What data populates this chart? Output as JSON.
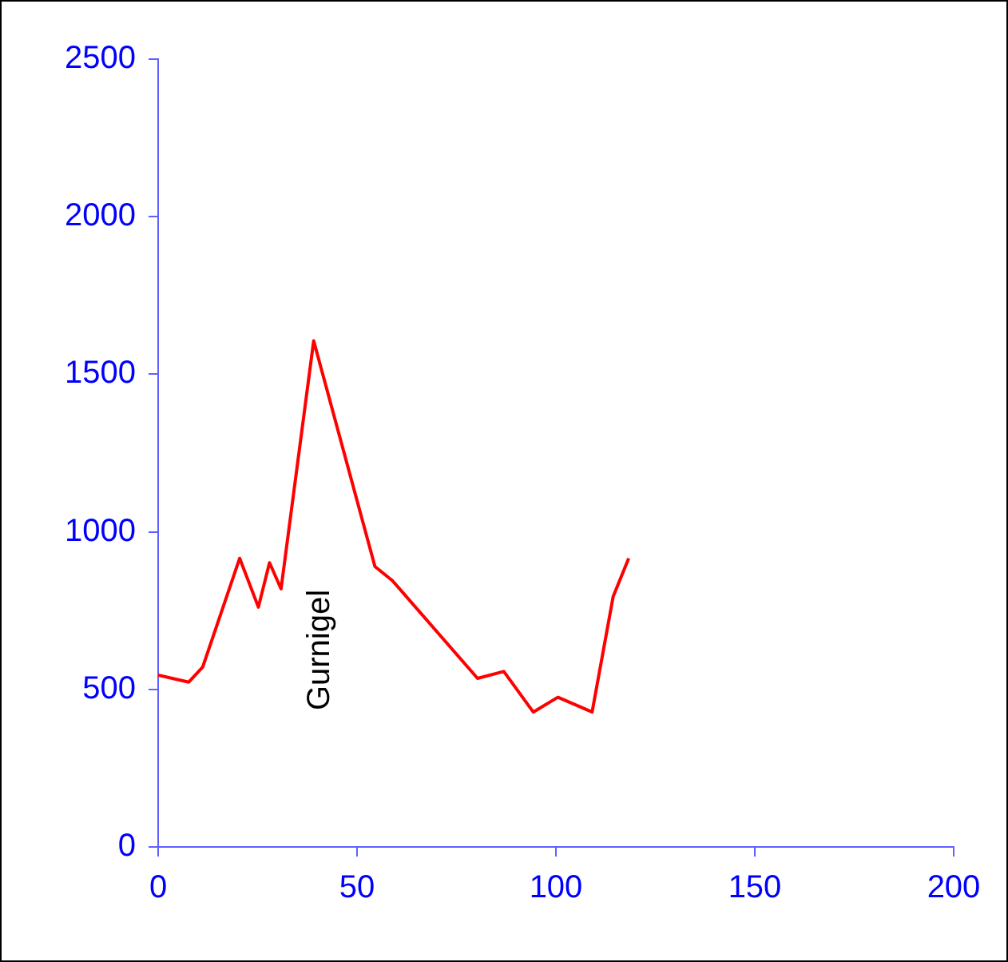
{
  "chart_data": {
    "type": "line",
    "x": [
      0,
      7.7,
      11.2,
      20.5,
      25.2,
      28,
      30.9,
      39.1,
      54.5,
      58.9,
      80.3,
      86.9,
      94.3,
      100.5,
      109.1,
      114.4,
      118.3
    ],
    "series": [
      {
        "color": "#ff0000",
        "values": [
          545,
          523,
          571,
          916,
          761,
          902,
          819,
          1606,
          890,
          845,
          535,
          557,
          428,
          475,
          428,
          795,
          916
        ]
      }
    ],
    "xlim": [
      0,
      200
    ],
    "xticks": [
      0,
      50,
      100,
      150,
      200
    ],
    "ylim": [
      0,
      2500
    ],
    "yticks": [
      0,
      500,
      1000,
      1500,
      2000,
      2500
    ],
    "grid": false,
    "legend": false,
    "marker": "none",
    "line_style": "solid",
    "annotations": [
      "Gurnigel"
    ]
  }
}
